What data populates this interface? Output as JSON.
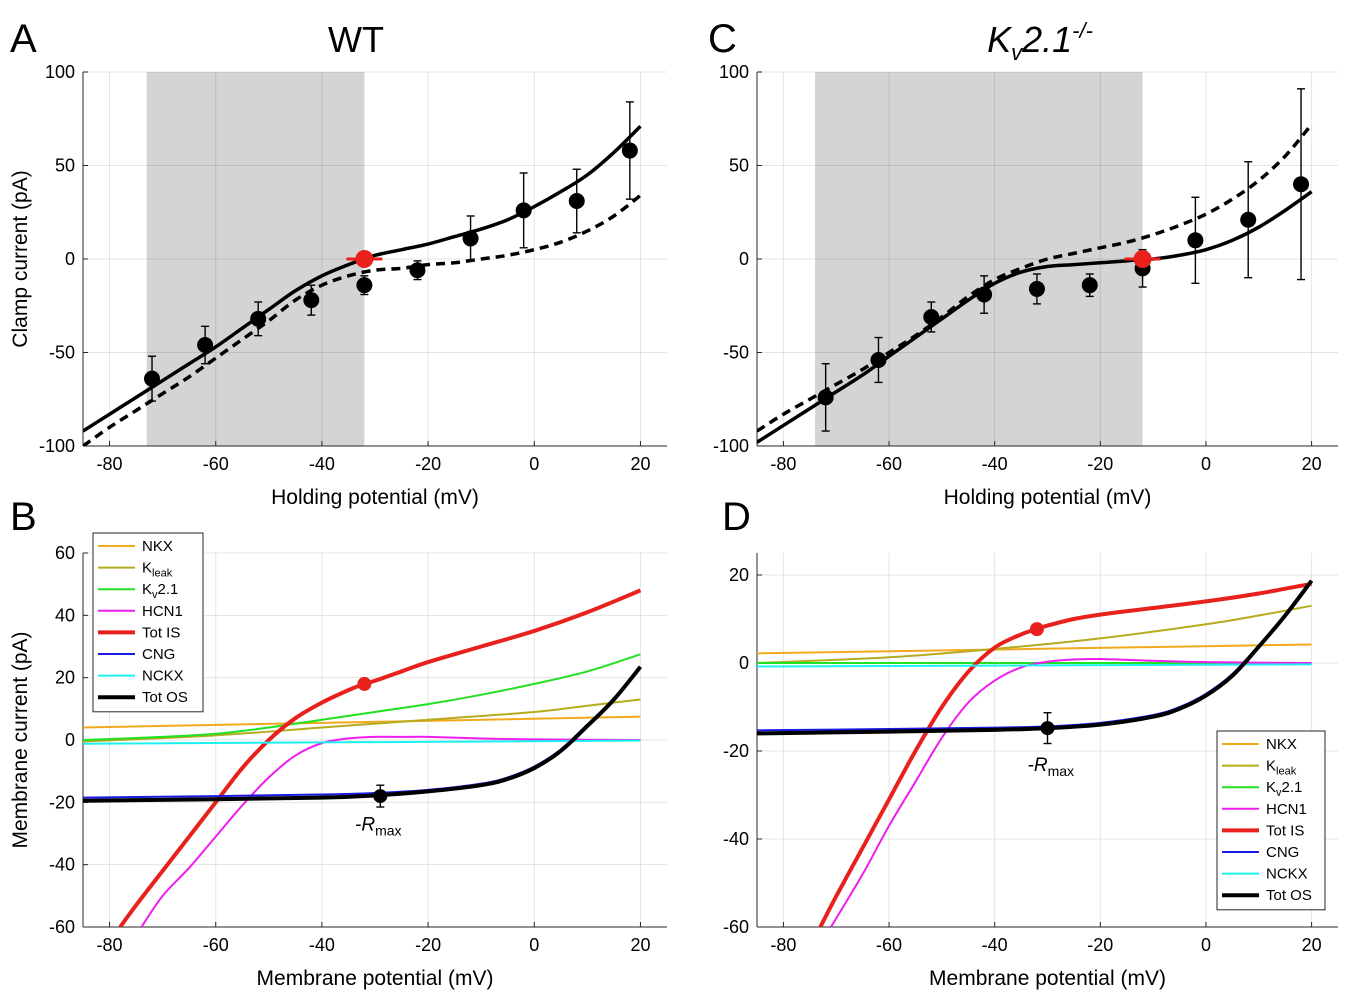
{
  "chart_data": [
    {
      "id": "A",
      "type": "line",
      "panel_label": "A",
      "title": "WT",
      "xlabel": "Holding potential (mV)",
      "ylabel": "Clamp current (pA)",
      "xlim": [
        -85,
        25
      ],
      "ylim": [
        -100,
        100
      ],
      "xticks": [
        -80,
        -60,
        -40,
        -20,
        0,
        20
      ],
      "yticks": [
        -100,
        -50,
        0,
        50,
        100
      ],
      "grid": true,
      "shaded_region": [
        -73,
        -32
      ],
      "series": [
        {
          "style": "solid",
          "color": "#000000",
          "x": [
            -85,
            -80,
            -75,
            -70,
            -65,
            -60,
            -55,
            -50,
            -45,
            -40,
            -35,
            -32,
            -30,
            -25,
            -20,
            -15,
            -10,
            -5,
            0,
            5,
            10,
            15,
            20
          ],
          "y": [
            -92,
            -83,
            -74,
            -65,
            -56,
            -47,
            -37,
            -27,
            -17,
            -9,
            -3,
            0,
            2,
            5,
            8,
            12,
            16,
            21,
            28,
            36,
            45,
            57,
            71
          ]
        },
        {
          "style": "dashed",
          "color": "#000000",
          "x": [
            -85,
            -80,
            -75,
            -70,
            -65,
            -60,
            -55,
            -50,
            -45,
            -40,
            -35,
            -30,
            -25,
            -20,
            -15,
            -10,
            -5,
            0,
            5,
            10,
            15,
            20
          ],
          "y": [
            -100,
            -90,
            -81,
            -72,
            -63,
            -53,
            -43,
            -33,
            -22,
            -14,
            -9,
            -6,
            -5,
            -3,
            -2,
            0,
            2,
            5,
            9,
            15,
            23,
            34
          ]
        }
      ],
      "points": {
        "x": [
          -72,
          -62,
          -52,
          -42,
          -32,
          -22,
          -12,
          -2,
          8,
          18
        ],
        "y": [
          -64,
          -46,
          -32,
          -22,
          -14,
          -6,
          11,
          26,
          31,
          58
        ],
        "err": [
          12,
          10,
          9,
          8,
          5,
          5,
          12,
          20,
          17,
          26
        ]
      },
      "marker": {
        "x": -32,
        "y": 0,
        "color": "#e8211d"
      }
    },
    {
      "id": "C",
      "type": "line",
      "panel_label": "C",
      "title": "K",
      "title_sub": "v",
      "title_rest": "2.1",
      "title_sup": "-/-",
      "xlabel": "Holding potential (mV)",
      "ylabel": "",
      "xlim": [
        -85,
        25
      ],
      "ylim": [
        -100,
        100
      ],
      "xticks": [
        -80,
        -60,
        -40,
        -20,
        0,
        20
      ],
      "yticks": [
        -100,
        -50,
        0,
        50,
        100
      ],
      "grid": true,
      "shaded_region": [
        -74,
        -12
      ],
      "series": [
        {
          "style": "solid",
          "color": "#000000",
          "x": [
            -85,
            -80,
            -75,
            -70,
            -65,
            -60,
            -55,
            -50,
            -45,
            -40,
            -35,
            -30,
            -25,
            -20,
            -15,
            -12,
            -10,
            -5,
            0,
            5,
            10,
            15,
            20
          ],
          "y": [
            -98,
            -89,
            -80,
            -71,
            -62,
            -52,
            -42,
            -32,
            -22,
            -13,
            -7,
            -4,
            -3,
            -2,
            -1,
            0,
            0,
            2,
            5,
            10,
            17,
            26,
            36
          ]
        },
        {
          "style": "dashed",
          "color": "#000000",
          "x": [
            -85,
            -80,
            -75,
            -70,
            -65,
            -60,
            -55,
            -50,
            -45,
            -40,
            -35,
            -30,
            -25,
            -20,
            -15,
            -10,
            -5,
            0,
            5,
            10,
            15,
            20
          ],
          "y": [
            -92,
            -83,
            -75,
            -67,
            -59,
            -50,
            -41,
            -31,
            -20,
            -11,
            -5,
            0,
            3,
            6,
            9,
            13,
            18,
            24,
            32,
            42,
            55,
            72
          ]
        }
      ],
      "points": {
        "x": [
          -72,
          -62,
          -52,
          -42,
          -32,
          -22,
          -12,
          -2,
          8,
          18
        ],
        "y": [
          -74,
          -54,
          -31,
          -19,
          -16,
          -14,
          -5,
          10,
          21,
          40
        ],
        "err": [
          18,
          12,
          8,
          10,
          8,
          6,
          10,
          23,
          31,
          51
        ]
      },
      "marker": {
        "x": -12,
        "y": 0,
        "color": "#e8211d"
      }
    },
    {
      "id": "B",
      "type": "line",
      "panel_label": "B",
      "xlabel": "Membrane potential (mV)",
      "ylabel": "Membrane current (pA)",
      "xlim": [
        -85,
        25
      ],
      "ylim": [
        -60,
        60
      ],
      "xticks": [
        -80,
        -60,
        -40,
        -20,
        0,
        20
      ],
      "yticks": [
        -60,
        -40,
        -20,
        0,
        20,
        40,
        60
      ],
      "grid": true,
      "legend_position": "top-left",
      "series": [
        {
          "name": "NKX",
          "color": "#f2a81d",
          "width": 2,
          "x": [
            -85,
            20
          ],
          "y": [
            4,
            7.5
          ]
        },
        {
          "name": "K",
          "name_sub": "leak",
          "color": "#b5ab1e",
          "width": 2,
          "x": [
            -85,
            -60,
            -40,
            -20,
            0,
            10,
            20
          ],
          "y": [
            -0.5,
            1.5,
            4,
            6.5,
            9,
            11,
            13
          ]
        },
        {
          "name": "K",
          "name_sub": "v",
          "name_rest": "2.1",
          "color": "#22e022",
          "width": 2,
          "x": [
            -85,
            -70,
            -60,
            -50,
            -40,
            -30,
            -20,
            -10,
            0,
            10,
            20
          ],
          "y": [
            0,
            1,
            2,
            4,
            6.5,
            9,
            11.5,
            14.5,
            18,
            22,
            27.5
          ]
        },
        {
          "name": "HCN1",
          "color": "#f01df0",
          "width": 2,
          "x": [
            -74,
            -70,
            -65,
            -60,
            -55,
            -50,
            -45,
            -40,
            -35,
            -30,
            -25,
            -20,
            -10,
            0,
            20
          ],
          "y": [
            -60,
            -50,
            -41,
            -31,
            -21,
            -12,
            -5,
            -1,
            0.5,
            1,
            1,
            1,
            0.5,
            0.2,
            0
          ]
        },
        {
          "name": "Tot IS",
          "color": "#e8211d",
          "width": 4,
          "x": [
            -78,
            -75,
            -70,
            -65,
            -60,
            -55,
            -50,
            -45,
            -40,
            -35,
            -32,
            -30,
            -25,
            -20,
            -10,
            0,
            10,
            20
          ],
          "y": [
            -60,
            -53,
            -42,
            -31,
            -20,
            -9,
            0,
            7,
            12,
            16,
            18,
            19,
            22,
            25,
            30,
            35,
            41,
            48
          ]
        },
        {
          "name": "CNG",
          "color": "#1a1ae0",
          "width": 2,
          "x": [
            -85,
            -60,
            -40,
            -30,
            -20,
            -10,
            -5,
            0,
            5,
            10,
            15,
            20
          ],
          "y": [
            -18.5,
            -18,
            -17.5,
            -17,
            -16,
            -14,
            -12,
            -8.5,
            -3,
            5,
            13,
            23
          ]
        },
        {
          "name": "NCKX",
          "color": "#1df0f0",
          "width": 2,
          "x": [
            -85,
            20
          ],
          "y": [
            -1.2,
            -0.2
          ]
        },
        {
          "name": "Tot OS",
          "color": "#000000",
          "width": 4,
          "x": [
            -85,
            -60,
            -40,
            -30,
            -20,
            -10,
            -5,
            0,
            5,
            10,
            15,
            20
          ],
          "y": [
            -19.5,
            -19,
            -18.5,
            -17.8,
            -16.5,
            -14.5,
            -12.5,
            -9,
            -3.5,
            4.5,
            13,
            23.5
          ]
        }
      ],
      "markers": [
        {
          "x": -32,
          "y": 18,
          "color": "#e8211d"
        },
        {
          "x": -29,
          "y": -18,
          "color": "#000000",
          "err": 3.5
        }
      ],
      "annotation": {
        "text": "-R",
        "sub": "max",
        "x": -30,
        "y": -29
      }
    },
    {
      "id": "D",
      "type": "line",
      "panel_label": "D",
      "xlabel": "Membrane potential (mV)",
      "ylabel": "",
      "xlim": [
        -85,
        25
      ],
      "ylim": [
        -60,
        25
      ],
      "xticks": [
        -80,
        -60,
        -40,
        -20,
        0,
        20
      ],
      "yticks": [
        -60,
        -40,
        -20,
        0,
        20
      ],
      "grid": true,
      "legend_position": "bottom-right",
      "series": [
        {
          "name": "NKX",
          "color": "#f2a81d",
          "width": 2,
          "x": [
            -85,
            20
          ],
          "y": [
            2.2,
            4.2
          ]
        },
        {
          "name": "K",
          "name_sub": "leak",
          "color": "#b5ab1e",
          "width": 2,
          "x": [
            -85,
            -60,
            -40,
            -20,
            0,
            10,
            20
          ],
          "y": [
            0,
            1.3,
            3.2,
            5.6,
            8.8,
            10.8,
            13
          ]
        },
        {
          "name": "K",
          "name_sub": "v",
          "name_rest": "2.1",
          "color": "#22e022",
          "width": 2,
          "x": [
            -85,
            20
          ],
          "y": [
            0,
            0
          ]
        },
        {
          "name": "HCN1",
          "color": "#f01df0",
          "width": 2,
          "x": [
            -71,
            -65,
            -60,
            -55,
            -50,
            -45,
            -40,
            -35,
            -30,
            -25,
            -20,
            -10,
            0,
            20
          ],
          "y": [
            -60,
            -48,
            -37,
            -27,
            -17,
            -9,
            -4,
            -1,
            0.3,
            0.8,
            0.9,
            0.5,
            0.2,
            0
          ]
        },
        {
          "name": "Tot IS",
          "color": "#e8211d",
          "width": 4,
          "x": [
            -73,
            -70,
            -65,
            -60,
            -55,
            -50,
            -45,
            -40,
            -35,
            -32,
            -30,
            -25,
            -20,
            -10,
            0,
            10,
            20
          ],
          "y": [
            -60,
            -53,
            -42,
            -31,
            -20,
            -10,
            -2,
            3.5,
            6.5,
            7.7,
            8.5,
            10,
            11,
            12.5,
            14,
            15.8,
            18
          ]
        },
        {
          "name": "CNG",
          "color": "#1a1ae0",
          "width": 2,
          "x": [
            -85,
            -60,
            -40,
            -30,
            -20,
            -10,
            -5,
            0,
            5,
            10,
            15,
            20
          ],
          "y": [
            -15.3,
            -15,
            -14.7,
            -14.4,
            -13.6,
            -11.8,
            -10,
            -7,
            -2.5,
            4,
            11,
            18.5
          ]
        },
        {
          "name": "NCKX",
          "color": "#1df0f0",
          "width": 2,
          "x": [
            -85,
            20
          ],
          "y": [
            -0.8,
            -0.3
          ]
        },
        {
          "name": "Tot OS",
          "color": "#000000",
          "width": 4,
          "x": [
            -85,
            -60,
            -40,
            -30,
            -20,
            -10,
            -5,
            0,
            5,
            10,
            15,
            20
          ],
          "y": [
            -16,
            -15.6,
            -15.2,
            -14.8,
            -14,
            -12.2,
            -10.4,
            -7.4,
            -2.9,
            3.7,
            10.8,
            18.7
          ]
        }
      ],
      "markers": [
        {
          "x": -32,
          "y": 7.7,
          "color": "#e8211d"
        },
        {
          "x": -30,
          "y": -14.8,
          "color": "#000000",
          "err": 3.5
        }
      ],
      "annotation": {
        "text": "-R",
        "sub": "max",
        "x": -30,
        "y": -24.5
      }
    }
  ]
}
